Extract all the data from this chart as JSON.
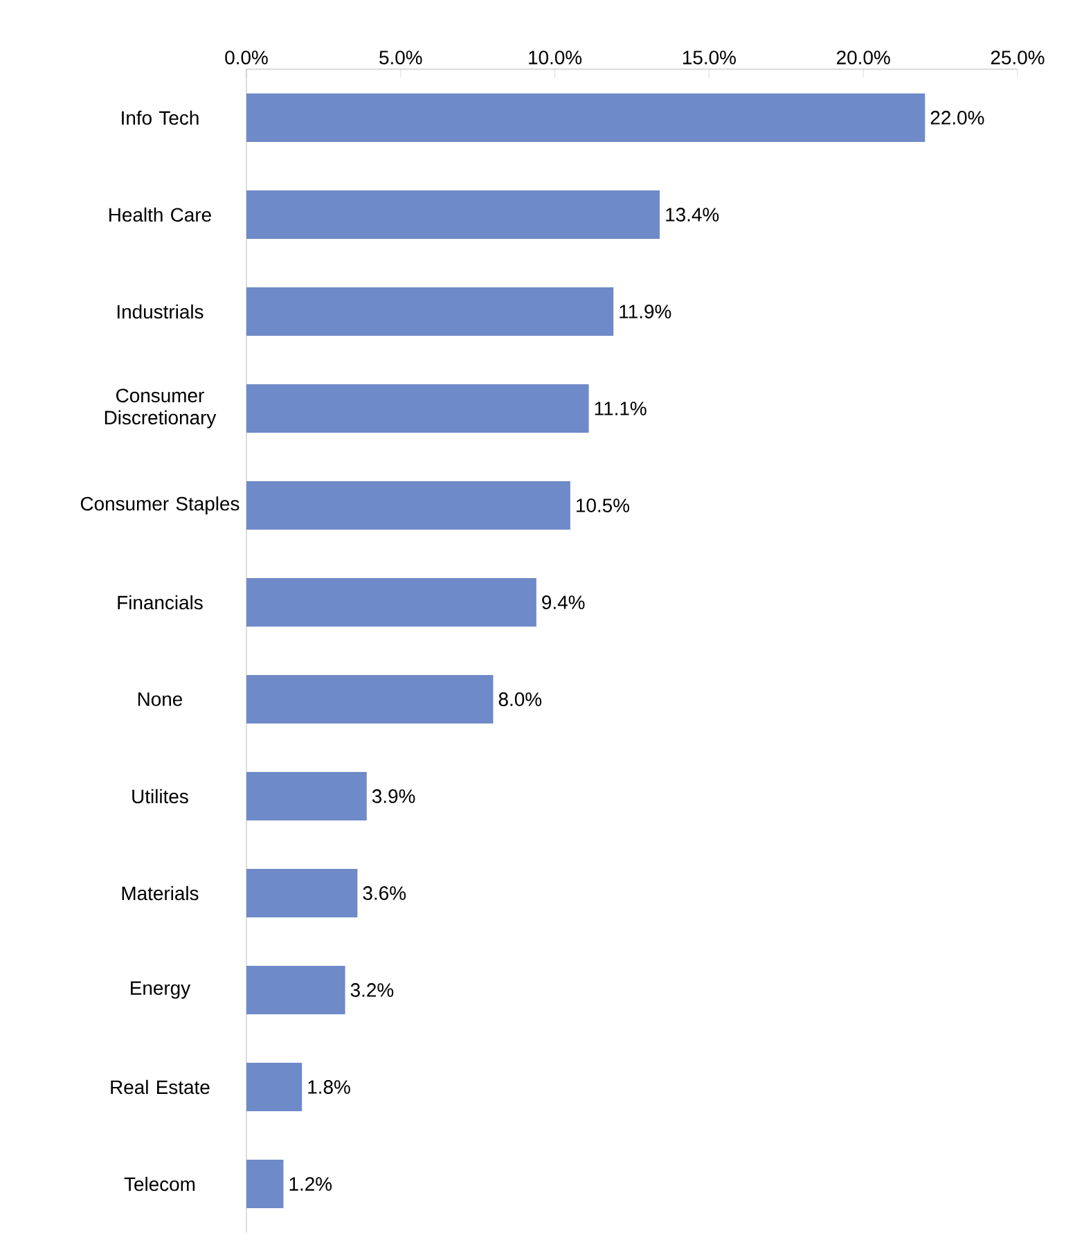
{
  "chart_data": {
    "type": "bar",
    "orientation": "horizontal",
    "categories": [
      "Info Tech",
      "Health Care",
      "Industrials",
      "Consumer Discretionary",
      "Consumer Staples",
      "Financials",
      "None",
      "Utilites",
      "Materials",
      "Energy",
      "Real Estate",
      "Telecom"
    ],
    "values": [
      22.0,
      13.4,
      11.9,
      11.1,
      10.5,
      9.4,
      8.0,
      3.9,
      3.6,
      3.2,
      1.8,
      1.2
    ],
    "value_labels": [
      "22.0%",
      "13.4%",
      "11.9%",
      "11.1%",
      "10.5%",
      "9.4%",
      "8.0%",
      "3.9%",
      "3.6%",
      "3.2%",
      "1.8%",
      "1.2%"
    ],
    "color": "#6f8ac8",
    "xlim": [
      0,
      25
    ],
    "xticks": [
      {
        "value": 0,
        "label": "0.0%"
      },
      {
        "value": 5,
        "label": "5.0%"
      },
      {
        "value": 10,
        "label": "10.0%"
      },
      {
        "value": 15,
        "label": "15.0%"
      },
      {
        "value": 20,
        "label": "20.0%"
      },
      {
        "value": 25,
        "label": "25.0%"
      }
    ],
    "grid": false
  }
}
